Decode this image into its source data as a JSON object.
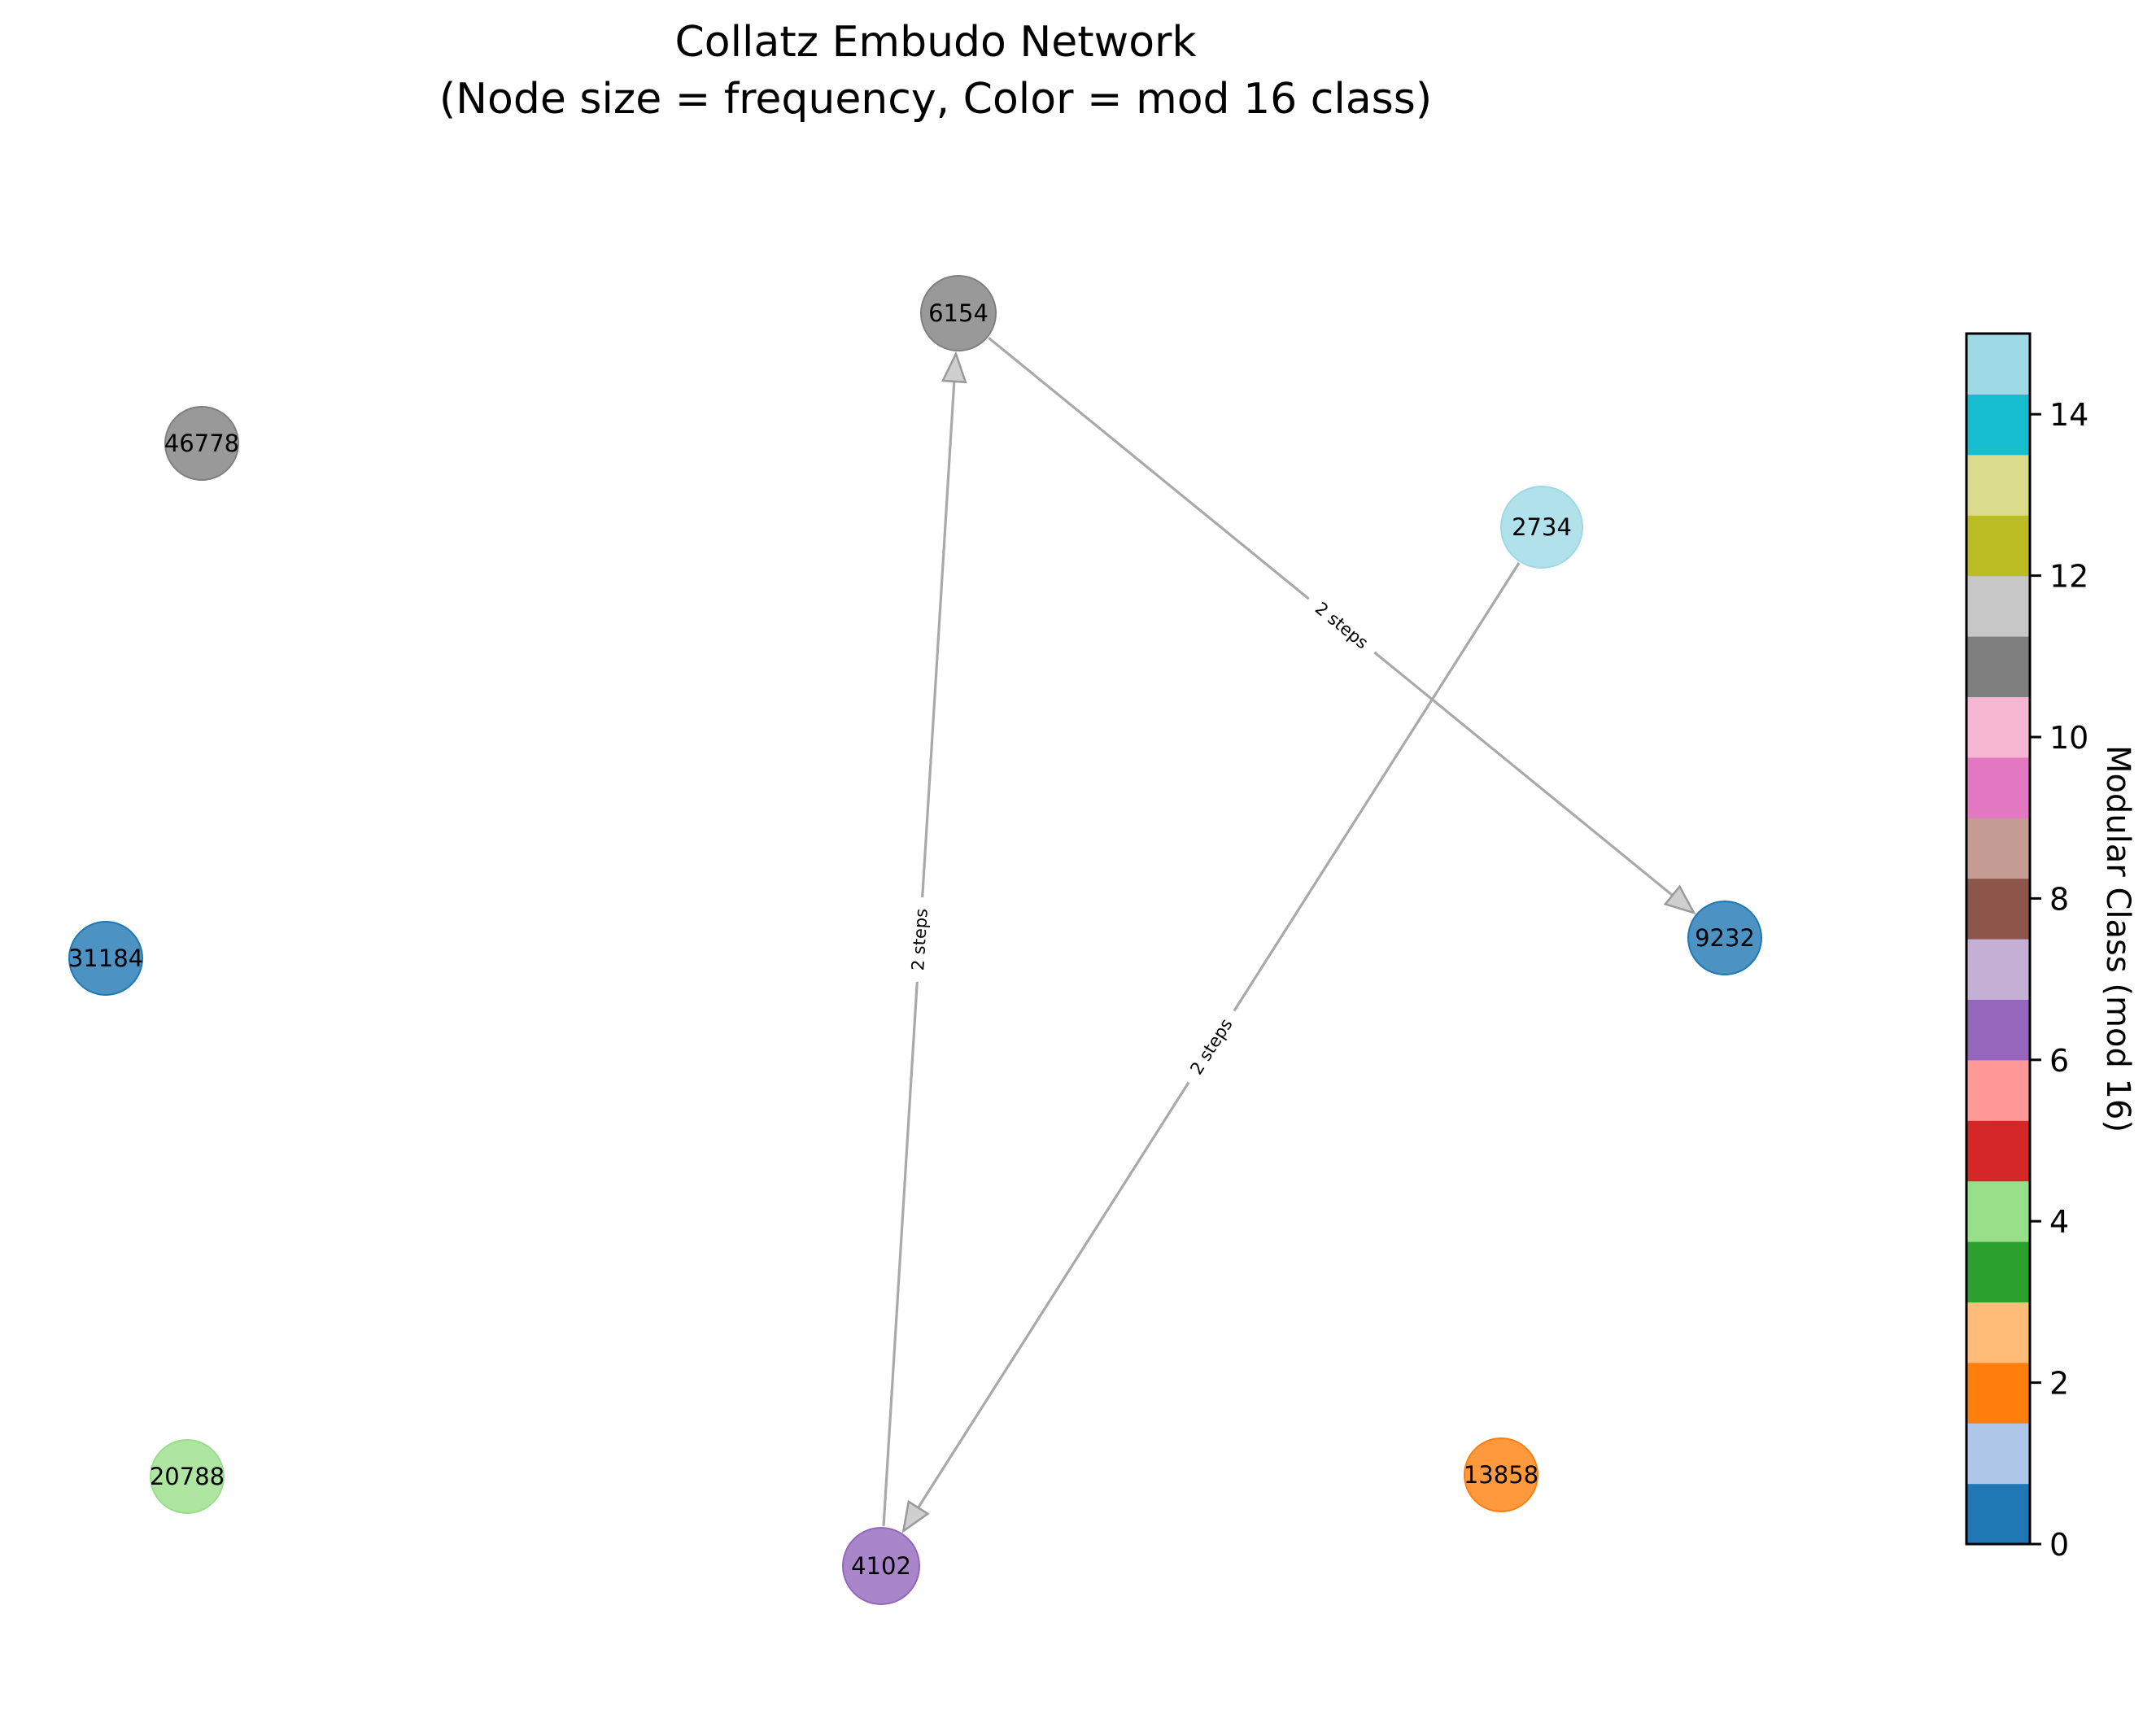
{
  "title": {
    "line1": "Collatz Embudo Network",
    "line2": "(Node size = frequency, Color = mod 16 class)"
  },
  "nodes": [
    {
      "id": "6154",
      "label": "6154",
      "mod16": 10,
      "color": "#7f7f7f"
    },
    {
      "id": "46778",
      "label": "46778",
      "mod16": 10,
      "color": "#7f7f7f"
    },
    {
      "id": "2734",
      "label": "2734",
      "mod16": 14,
      "color": "#9edae5"
    },
    {
      "id": "31184",
      "label": "31184",
      "mod16": 0,
      "color": "#1f77b4"
    },
    {
      "id": "9232",
      "label": "9232",
      "mod16": 0,
      "color": "#1f77b4"
    },
    {
      "id": "20788",
      "label": "20788",
      "mod16": 4,
      "color": "#98df8a"
    },
    {
      "id": "4102",
      "label": "4102",
      "mod16": 6,
      "color": "#9467bd"
    },
    {
      "id": "13858",
      "label": "13858",
      "mod16": 2,
      "color": "#ff7f0e"
    }
  ],
  "edges": [
    {
      "source": "4102",
      "target": "6154",
      "label": "2 steps"
    },
    {
      "source": "6154",
      "target": "9232",
      "label": "2 steps"
    },
    {
      "source": "2734",
      "target": "4102",
      "label": "2 steps"
    }
  ],
  "colorbar": {
    "label": "Modular Class (mod 16)",
    "min": 0,
    "max": 15,
    "ticks": [
      "0",
      "2",
      "4",
      "6",
      "8",
      "10",
      "12",
      "14"
    ],
    "tick_values": [
      0,
      2,
      4,
      6,
      8,
      10,
      12,
      14
    ],
    "colors": [
      "#1f77b4",
      "#aec7e8",
      "#ff7f0e",
      "#ffbb78",
      "#2ca02c",
      "#98df8a",
      "#d62728",
      "#ff9896",
      "#9467bd",
      "#c5b0d5",
      "#8c564b",
      "#c49c94",
      "#e377c2",
      "#f7b6d2",
      "#7f7f7f",
      "#c7c7c7",
      "#bcbd22",
      "#dbdb8d",
      "#17becf",
      "#9edae5"
    ]
  }
}
